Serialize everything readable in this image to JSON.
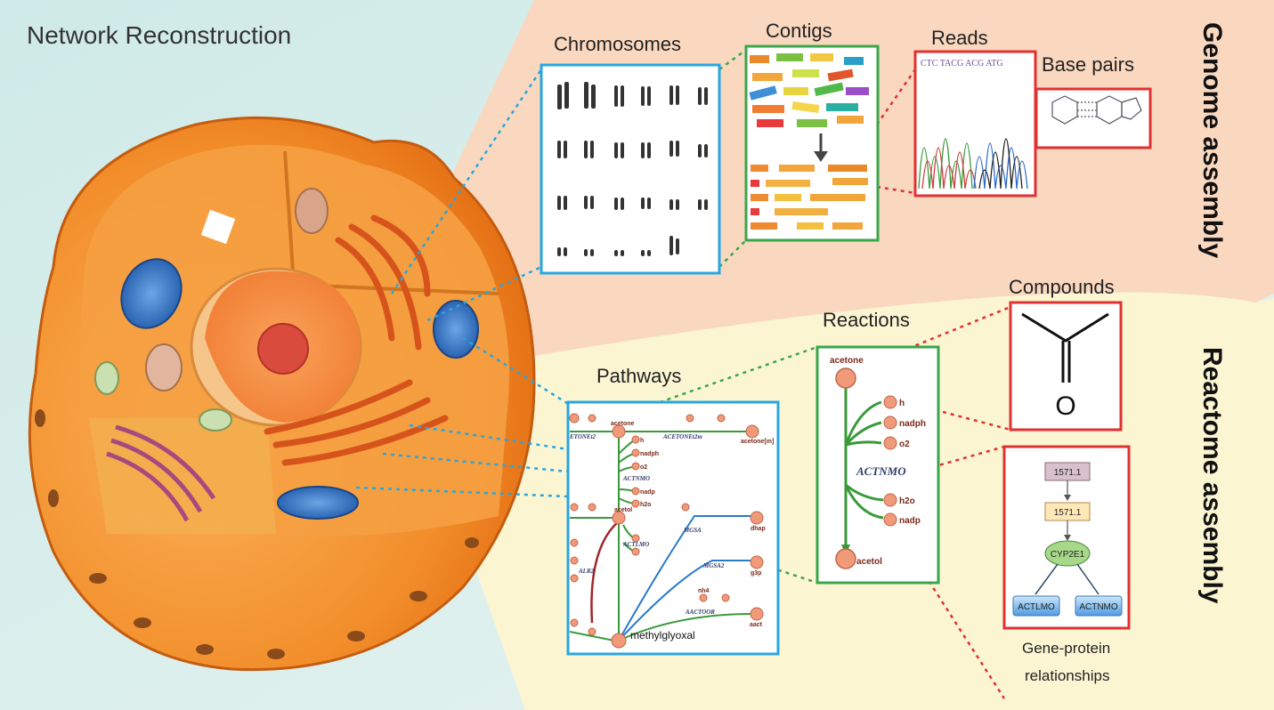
{
  "title": "Network Reconstruction",
  "sections": {
    "genome": "Genome assembly",
    "reactome": "Reactome assembly"
  },
  "labels": {
    "chromosomes": "Chromosomes",
    "contigs": "Contigs",
    "reads": "Reads",
    "base_pairs": "Base pairs",
    "compounds": "Compounds",
    "reactions": "Reactions",
    "pathways": "Pathways",
    "gene_protein_1": "Gene-protein",
    "gene_protein_2": "relationships"
  },
  "reads_sequence": "CTC TACG ACG ATG",
  "compound_atom": "O",
  "reaction": {
    "name": "ACTNMO",
    "substrate": "acetone",
    "product": "acetol",
    "inputs": [
      "h",
      "nadph",
      "o2"
    ],
    "outputs": [
      "h2o",
      "nadp"
    ]
  },
  "pathway": {
    "main_metabolite": "methylglyoxal",
    "reactions": [
      "ETONEt2",
      "ACETONEt2m",
      "ACTNMO",
      "ACTLMO",
      "ALR2",
      "MGSA",
      "MGSA2",
      "AACTOOR"
    ],
    "metabolites": [
      "acetone",
      "acetone[m]",
      "acetol",
      "dhap",
      "g3p",
      "nadph",
      "nadp",
      "h2o",
      "o2",
      "h",
      "nh4",
      "aact"
    ]
  },
  "gene_protein": {
    "genes": [
      "1571.1",
      "1571.1"
    ],
    "protein": "CYP2E1",
    "reactions": [
      "ACTLMO",
      "ACTNMO"
    ]
  },
  "colors": {
    "genome_bg": "#fad8bf",
    "reactome_bg": "#fcf5d2",
    "left_bg": "#d8efed",
    "blue_box": "#27a7df",
    "green_box": "#3aa64a",
    "red_box": "#e03131",
    "node": "#f19a7a",
    "green_edge": "#3a9a3a"
  }
}
